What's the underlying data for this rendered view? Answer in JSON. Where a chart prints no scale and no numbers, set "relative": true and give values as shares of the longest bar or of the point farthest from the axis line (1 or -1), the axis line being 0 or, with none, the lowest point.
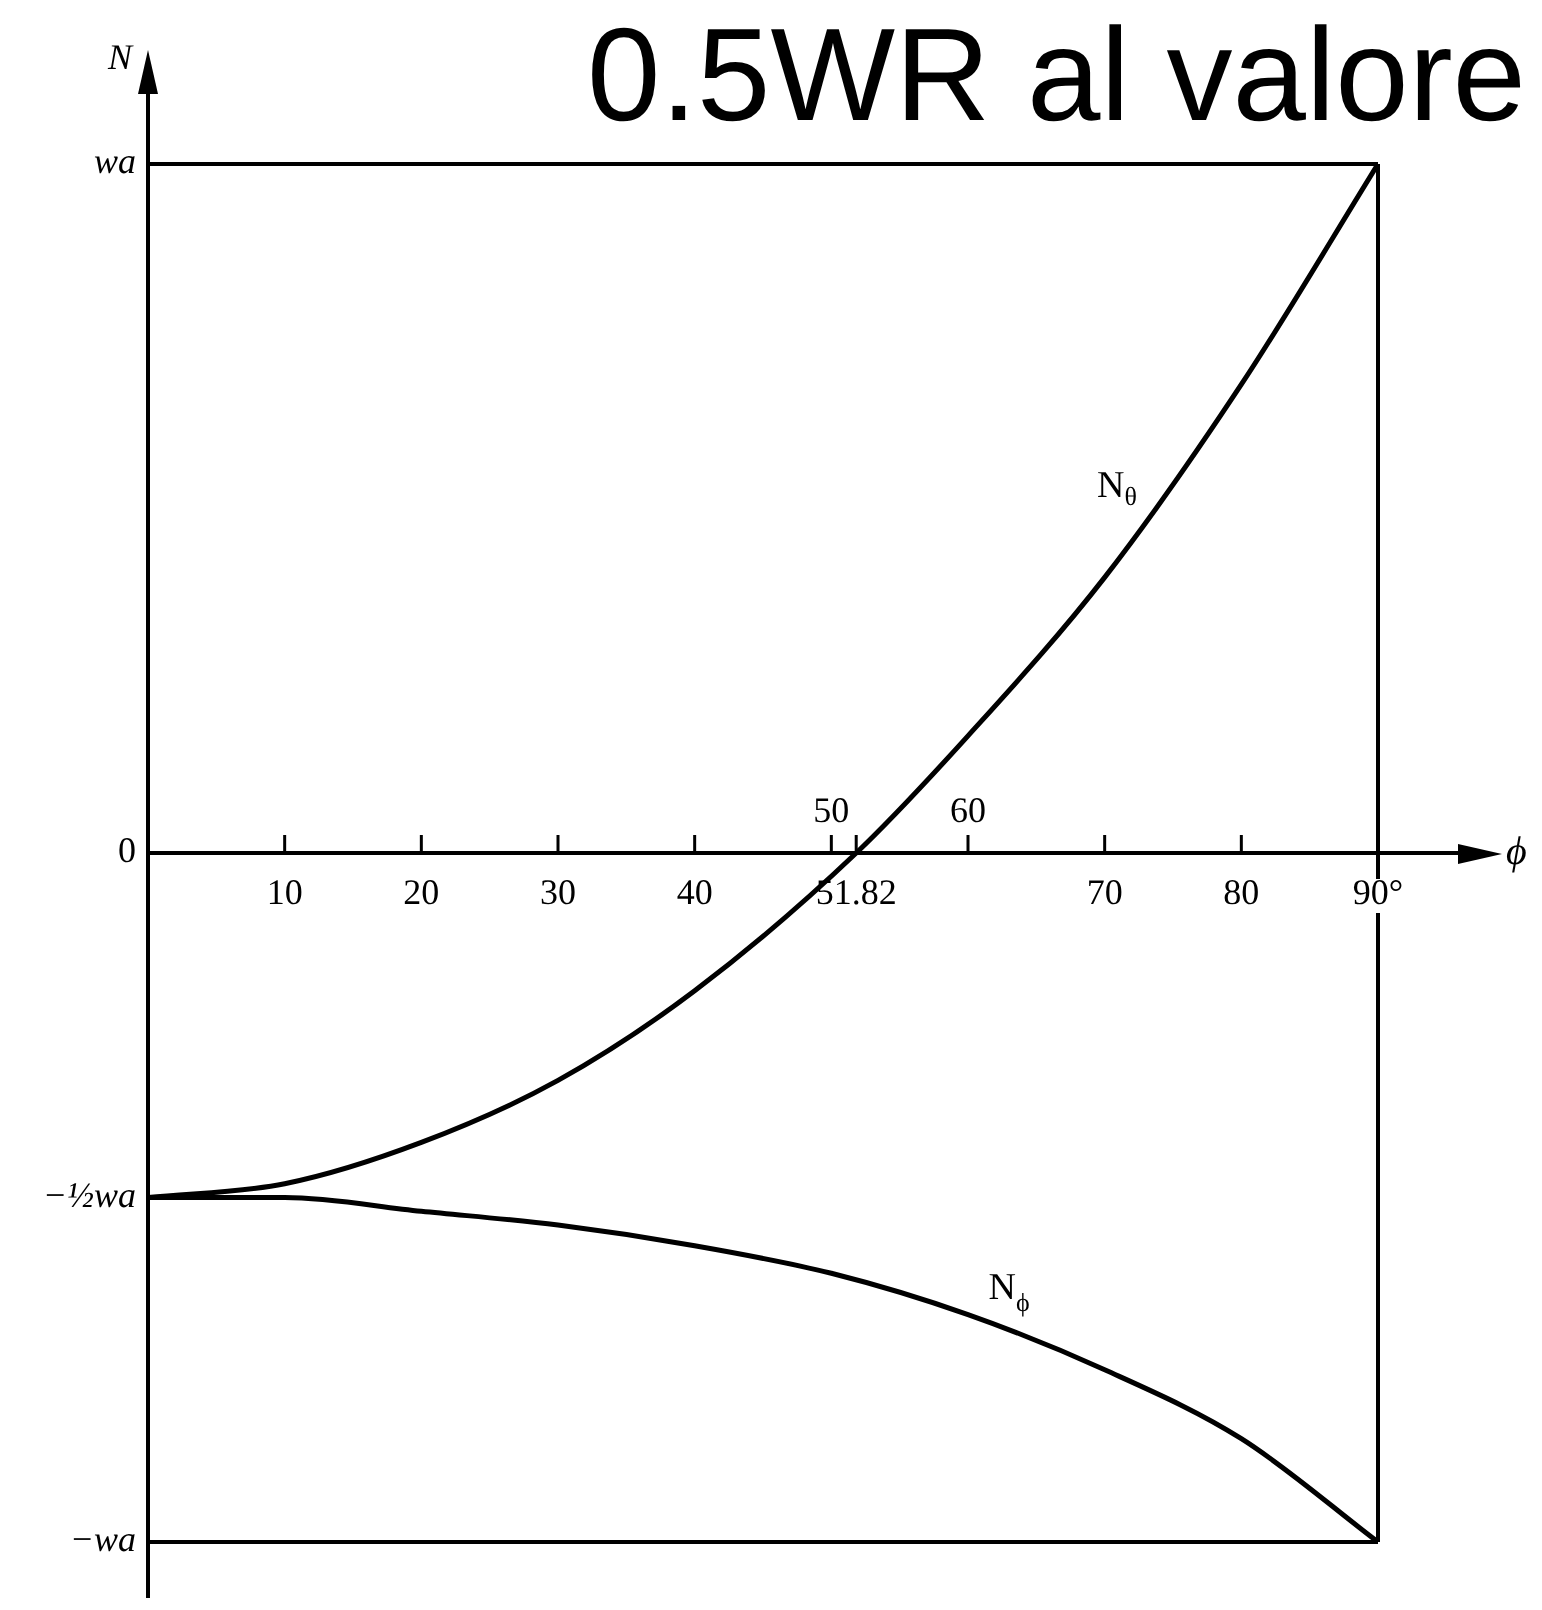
{
  "chart_data": {
    "type": "line",
    "relative": true,
    "title": "0.5WR al valore",
    "xlabel": "ϕ",
    "ylabel": "N",
    "series": [
      {
        "name": "N$_{θ}$",
        "color": "#000000",
        "x": [
          0,
          10,
          20,
          30,
          40,
          51.82,
          60,
          70,
          80,
          90
        ],
        "values": [
          -0.5,
          -0.48,
          -0.42,
          -0.33,
          -0.2,
          0,
          0.17,
          0.4,
          0.68,
          1
        ]
      },
      {
        "name": "N$_{ϕ}$",
        "color": "#000000",
        "x": [
          0,
          10,
          20,
          30,
          40,
          50,
          60,
          70,
          80,
          90
        ],
        "values": [
          -0.5,
          -0.5,
          -0.52,
          -0.54,
          -0.57,
          -0.61,
          -0.67,
          -0.75,
          -0.85,
          -1
        ]
      }
    ],
    "xlim": [
      0,
      90
    ],
    "xticks": [
      10,
      20,
      30,
      40,
      51.82,
      70,
      80,
      {
        "value": 90,
        "label": "90°"
      }
    ],
    "x2lim": [
      0,
      90
    ],
    "x2ticks": [
      50,
      60
    ],
    "ref_lines": [
      {
        "axis": "y",
        "value": 1,
        "label": "wa",
        "color": "#000000"
      },
      {
        "axis": "y",
        "value": -1,
        "label": "−wa",
        "color": "#000000"
      },
      {
        "axis": "x",
        "value": 90,
        "color": "#000000"
      }
    ],
    "annotations": [
      "0",
      {
        "text": "−½wa",
        "x": 0,
        "y": -0.5
      }
    ],
    "marker": "none",
    "line_style": "solid"
  }
}
